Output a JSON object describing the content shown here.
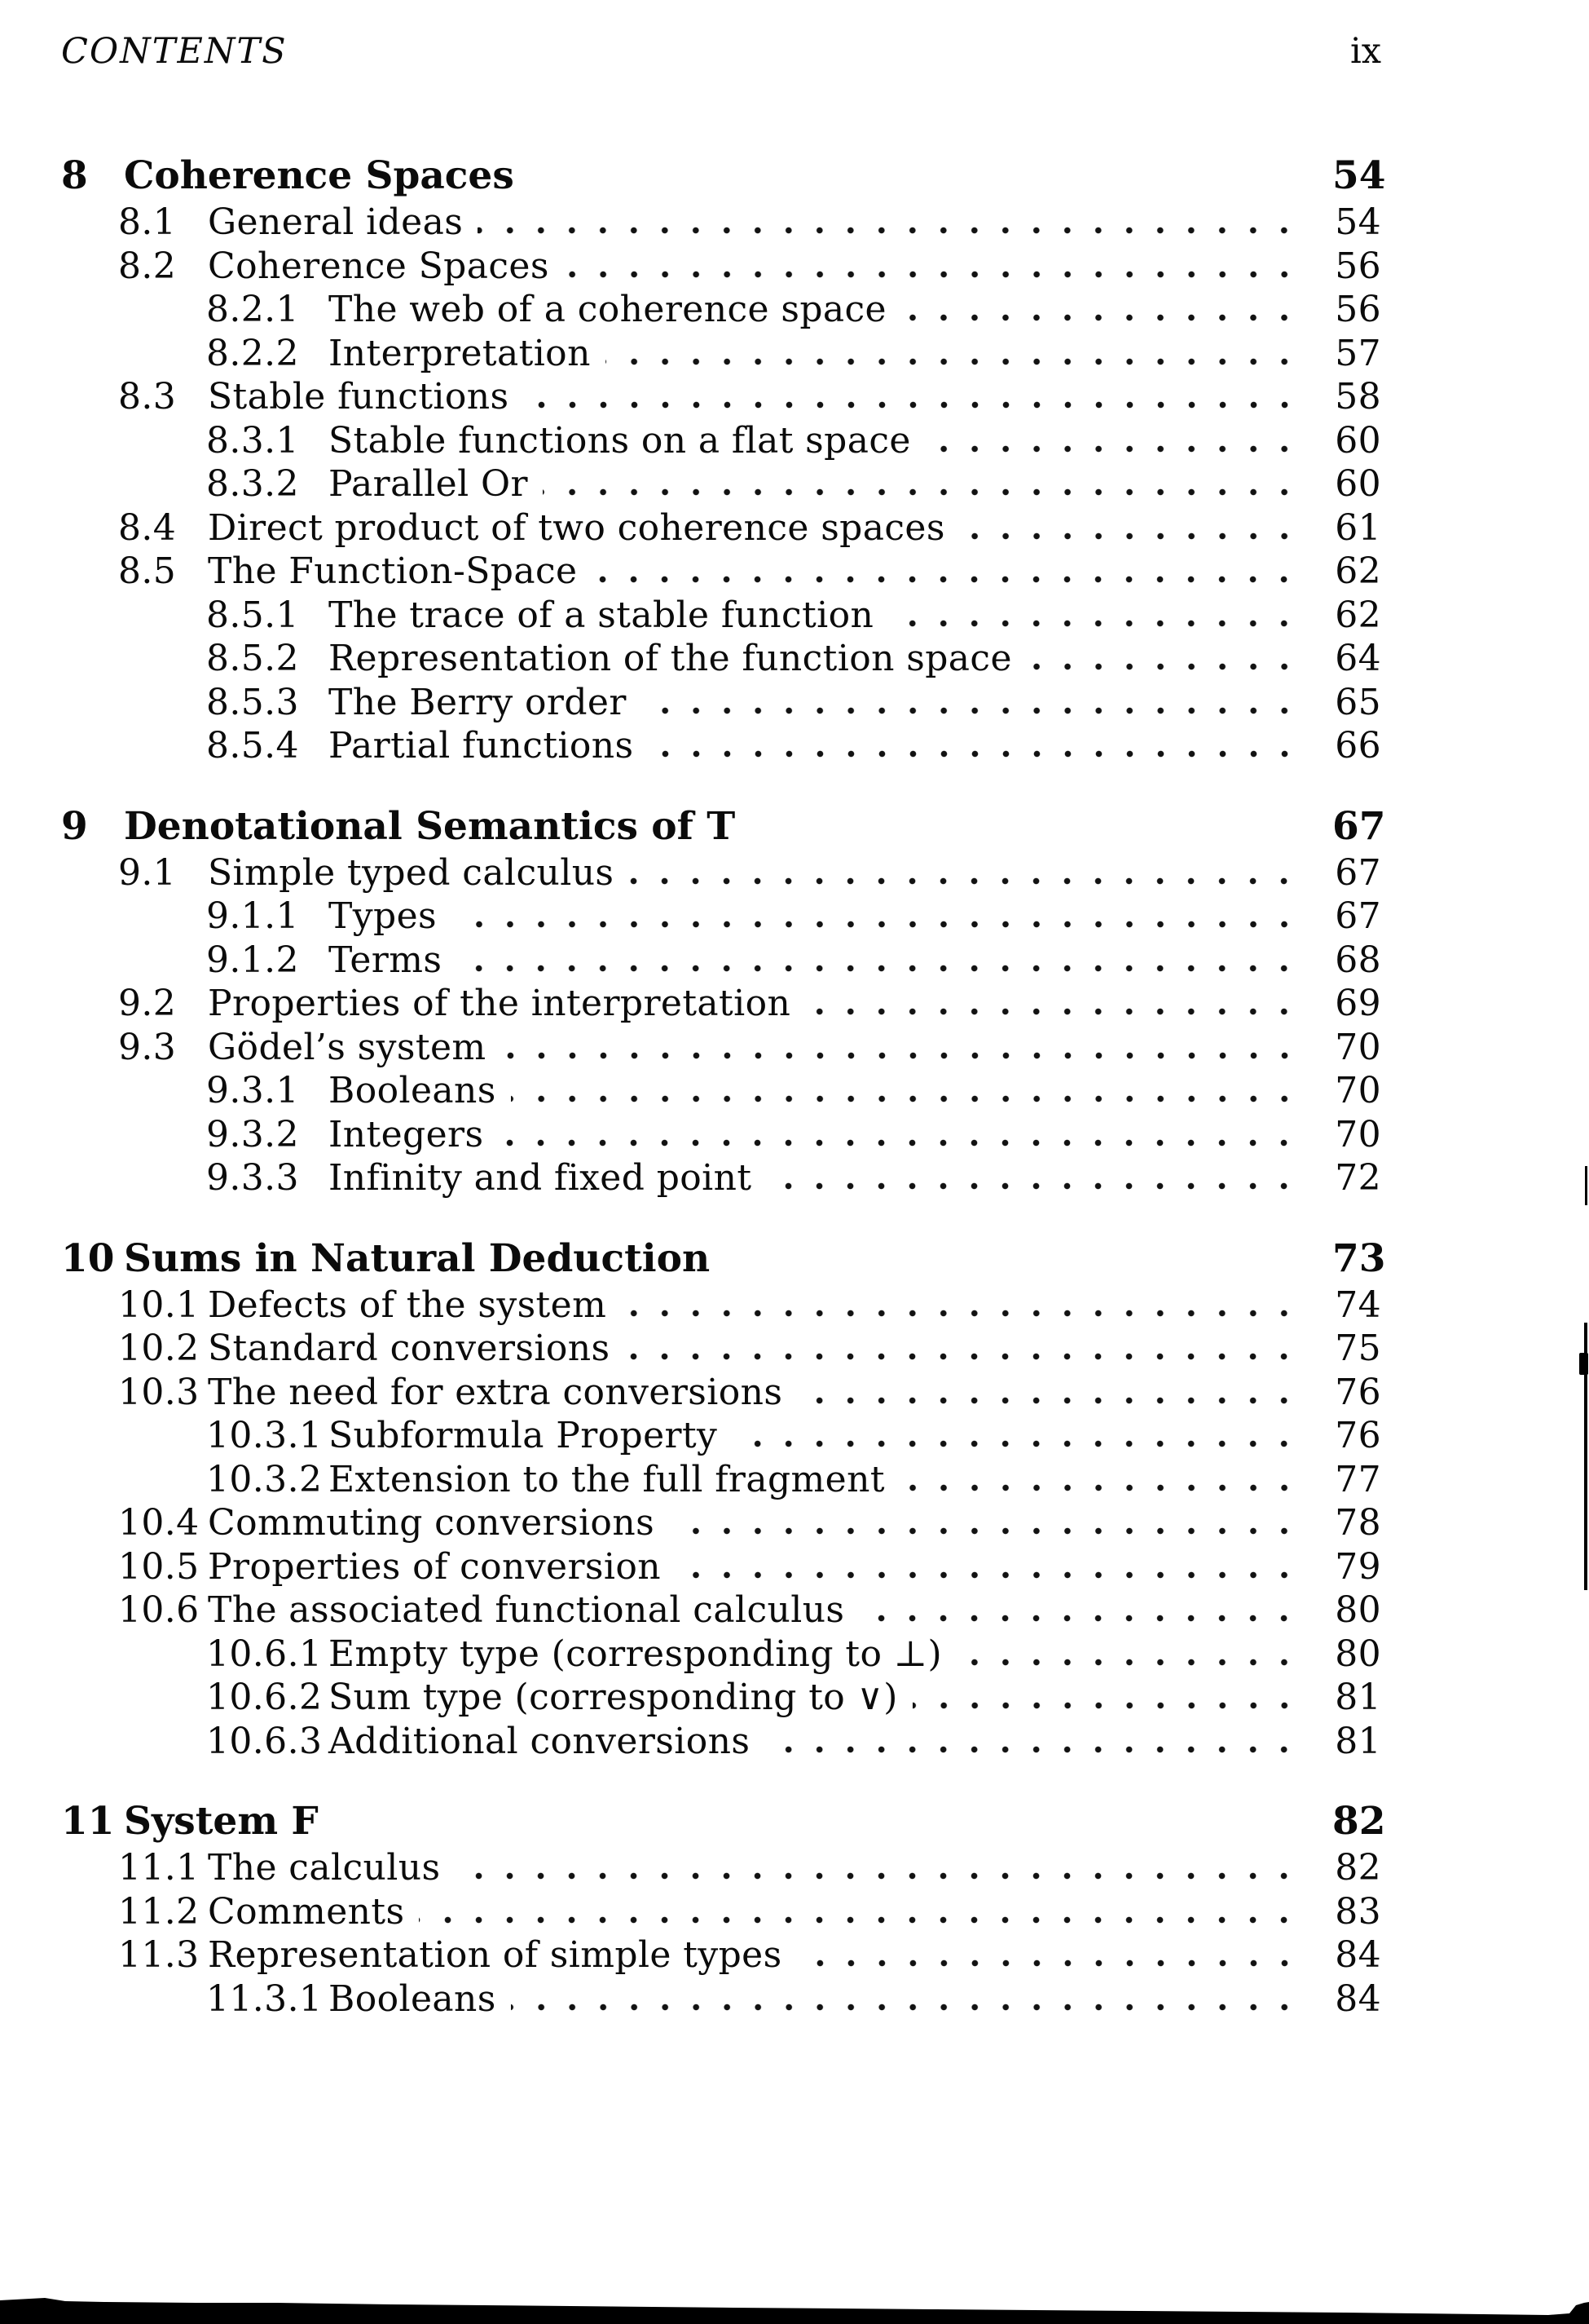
{
  "header": {
    "title": "CONTENTS",
    "page_number": "ix"
  },
  "toc": {
    "chapters": [
      {
        "number": "8",
        "title": "Coherence Spaces",
        "page": "54",
        "entries": [
          {
            "number": "8.1",
            "title": "General ideas",
            "page": "54",
            "level": 2
          },
          {
            "number": "8.2",
            "title": "Coherence Spaces",
            "page": "56",
            "level": 2
          },
          {
            "number": "8.2.1",
            "title": "The web of a coherence space",
            "page": "56",
            "level": 3
          },
          {
            "number": "8.2.2",
            "title": "Interpretation",
            "page": "57",
            "level": 3
          },
          {
            "number": "8.3",
            "title": "Stable functions",
            "page": "58",
            "level": 2
          },
          {
            "number": "8.3.1",
            "title": "Stable functions on a flat space",
            "page": "60",
            "level": 3
          },
          {
            "number": "8.3.2",
            "title": "Parallel Or",
            "page": "60",
            "level": 3
          },
          {
            "number": "8.4",
            "title": "Direct product of two coherence spaces",
            "page": "61",
            "level": 2
          },
          {
            "number": "8.5",
            "title": "The Function-Space",
            "page": "62",
            "level": 2
          },
          {
            "number": "8.5.1",
            "title": "The trace of a stable function",
            "page": "62",
            "level": 3
          },
          {
            "number": "8.5.2",
            "title": "Representation of the function space",
            "page": "64",
            "level": 3
          },
          {
            "number": "8.5.3",
            "title": "The Berry order",
            "page": "65",
            "level": 3
          },
          {
            "number": "8.5.4",
            "title": "Partial functions",
            "page": "66",
            "level": 3
          }
        ]
      },
      {
        "number": "9",
        "title": "Denotational Semantics of T",
        "page": "67",
        "entries": [
          {
            "number": "9.1",
            "title": "Simple typed calculus",
            "page": "67",
            "level": 2
          },
          {
            "number": "9.1.1",
            "title": "Types",
            "page": "67",
            "level": 3
          },
          {
            "number": "9.1.2",
            "title": "Terms",
            "page": "68",
            "level": 3
          },
          {
            "number": "9.2",
            "title": "Properties of the interpretation",
            "page": "69",
            "level": 2
          },
          {
            "number": "9.3",
            "title": "Gödel’s system",
            "page": "70",
            "level": 2
          },
          {
            "number": "9.3.1",
            "title": "Booleans",
            "page": "70",
            "level": 3
          },
          {
            "number": "9.3.2",
            "title": "Integers",
            "page": "70",
            "level": 3
          },
          {
            "number": "9.3.3",
            "title": "Infinity and fixed point",
            "page": "72",
            "level": 3
          }
        ]
      },
      {
        "number": "10",
        "title": "Sums in Natural Deduction",
        "page": "73",
        "entries": [
          {
            "number": "10.1",
            "title": "Defects of the system",
            "page": "74",
            "level": 2
          },
          {
            "number": "10.2",
            "title": "Standard conversions",
            "page": "75",
            "level": 2
          },
          {
            "number": "10.3",
            "title": "The need for extra conversions",
            "page": "76",
            "level": 2
          },
          {
            "number": "10.3.1",
            "title": "Subformula Property",
            "page": "76",
            "level": 3
          },
          {
            "number": "10.3.2",
            "title": "Extension to the full fragment",
            "page": "77",
            "level": 3
          },
          {
            "number": "10.4",
            "title": "Commuting conversions",
            "page": "78",
            "level": 2
          },
          {
            "number": "10.5",
            "title": "Properties of conversion",
            "page": "79",
            "level": 2
          },
          {
            "number": "10.6",
            "title": "The associated functional calculus",
            "page": "80",
            "level": 2
          },
          {
            "number": "10.6.1",
            "title": "Empty type (corresponding to ⊥)",
            "page": "80",
            "level": 3
          },
          {
            "number": "10.6.2",
            "title": "Sum type (corresponding to ∨)",
            "page": "81",
            "level": 3
          },
          {
            "number": "10.6.3",
            "title": "Additional conversions",
            "page": "81",
            "level": 3
          }
        ]
      },
      {
        "number": "11",
        "title": "System F",
        "page": "82",
        "entries": [
          {
            "number": "11.1",
            "title": "The calculus",
            "page": "82",
            "level": 2
          },
          {
            "number": "11.2",
            "title": "Comments",
            "page": "83",
            "level": 2
          },
          {
            "number": "11.3",
            "title": "Representation of simple types",
            "page": "84",
            "level": 2
          },
          {
            "number": "11.3.1",
            "title": "Booleans",
            "page": "84",
            "level": 3
          }
        ]
      }
    ]
  }
}
